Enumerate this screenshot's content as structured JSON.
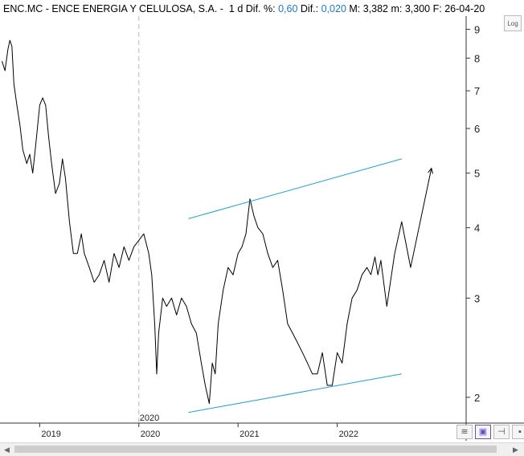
{
  "header": {
    "ticker": "ENC.MC",
    "sep1": " - ",
    "name": "ENCE ENERGIA Y CELULOSA, S.A.",
    "sep2": " - ",
    "period": "1 d",
    "dif_pct_label": "Dif. %:",
    "dif_pct_value": "0,60",
    "dif_label": "Dif.:",
    "dif_value": "0,020",
    "m_label": "M: 3,382",
    "m2_label": "m: 3,300",
    "f_label": "F: 26-04-20"
  },
  "controls": {
    "log_label": "Log"
  },
  "colors": {
    "price": "#000000",
    "channel": "#1ea0d8",
    "grid": "#b8b8b8",
    "axis": "#333333"
  },
  "chart_data": {
    "type": "line",
    "scale": "log",
    "ylim": [
      1.8,
      9.5
    ],
    "y_ticks": [
      2,
      3,
      4,
      5,
      6,
      7,
      8,
      9
    ],
    "x_ticks": [
      {
        "label": "2019",
        "x": 2019.0
      },
      {
        "label": "2020",
        "x": 2020.0
      },
      {
        "label": "2021",
        "x": 2021.0
      },
      {
        "label": "2022",
        "x": 2022.0
      }
    ],
    "x_range": [
      2018.6,
      2023.3
    ],
    "vertical_marker": {
      "label": "2020",
      "x": 2020.0
    },
    "series": [
      {
        "kind": "price",
        "points": [
          [
            2018.62,
            7.9
          ],
          [
            2018.65,
            7.6
          ],
          [
            2018.68,
            8.3
          ],
          [
            2018.7,
            8.6
          ],
          [
            2018.72,
            8.4
          ],
          [
            2018.74,
            7.2
          ],
          [
            2018.77,
            6.6
          ],
          [
            2018.8,
            6.1
          ],
          [
            2018.83,
            5.5
          ],
          [
            2018.87,
            5.2
          ],
          [
            2018.9,
            5.4
          ],
          [
            2018.93,
            5.0
          ],
          [
            2018.96,
            5.6
          ],
          [
            2019.0,
            6.6
          ],
          [
            2019.03,
            6.8
          ],
          [
            2019.06,
            6.6
          ],
          [
            2019.09,
            5.8
          ],
          [
            2019.12,
            5.2
          ],
          [
            2019.16,
            4.6
          ],
          [
            2019.2,
            4.8
          ],
          [
            2019.23,
            5.3
          ],
          [
            2019.26,
            4.9
          ],
          [
            2019.3,
            4.1
          ],
          [
            2019.34,
            3.6
          ],
          [
            2019.38,
            3.6
          ],
          [
            2019.42,
            3.9
          ],
          [
            2019.45,
            3.6
          ],
          [
            2019.5,
            3.4
          ],
          [
            2019.55,
            3.2
          ],
          [
            2019.6,
            3.3
          ],
          [
            2019.65,
            3.5
          ],
          [
            2019.7,
            3.2
          ],
          [
            2019.75,
            3.6
          ],
          [
            2019.8,
            3.4
          ],
          [
            2019.85,
            3.7
          ],
          [
            2019.9,
            3.5
          ],
          [
            2019.95,
            3.7
          ],
          [
            2020.0,
            3.8
          ],
          [
            2020.05,
            3.9
          ],
          [
            2020.1,
            3.6
          ],
          [
            2020.13,
            3.3
          ],
          [
            2020.16,
            2.7
          ],
          [
            2020.18,
            2.2
          ],
          [
            2020.2,
            2.6
          ],
          [
            2020.24,
            3.0
          ],
          [
            2020.28,
            2.9
          ],
          [
            2020.33,
            3.0
          ],
          [
            2020.38,
            2.8
          ],
          [
            2020.43,
            3.0
          ],
          [
            2020.48,
            2.9
          ],
          [
            2020.53,
            2.7
          ],
          [
            2020.58,
            2.6
          ],
          [
            2020.63,
            2.3
          ],
          [
            2020.67,
            2.1
          ],
          [
            2020.71,
            1.95
          ],
          [
            2020.74,
            2.3
          ],
          [
            2020.77,
            2.2
          ],
          [
            2020.8,
            2.7
          ],
          [
            2020.85,
            3.1
          ],
          [
            2020.9,
            3.4
          ],
          [
            2020.95,
            3.3
          ],
          [
            2021.0,
            3.6
          ],
          [
            2021.04,
            3.7
          ],
          [
            2021.08,
            3.9
          ],
          [
            2021.12,
            4.5
          ],
          [
            2021.16,
            4.2
          ],
          [
            2021.2,
            4.0
          ],
          [
            2021.25,
            3.9
          ],
          [
            2021.3,
            3.6
          ],
          [
            2021.35,
            3.4
          ],
          [
            2021.4,
            3.5
          ],
          [
            2021.45,
            3.1
          ],
          [
            2021.5,
            2.7
          ],
          [
            2021.55,
            2.6
          ],
          [
            2021.6,
            2.5
          ],
          [
            2021.65,
            2.4
          ],
          [
            2021.7,
            2.3
          ],
          [
            2021.75,
            2.2
          ],
          [
            2021.8,
            2.2
          ],
          [
            2021.85,
            2.4
          ],
          [
            2021.9,
            2.1
          ],
          [
            2021.95,
            2.1
          ],
          [
            2022.0,
            2.4
          ],
          [
            2022.05,
            2.3
          ],
          [
            2022.1,
            2.7
          ],
          [
            2022.15,
            3.0
          ],
          [
            2022.2,
            3.1
          ],
          [
            2022.25,
            3.3
          ],
          [
            2022.3,
            3.4
          ],
          [
            2022.34,
            3.3
          ]
        ]
      },
      {
        "kind": "projection",
        "points": [
          [
            2022.34,
            3.3
          ],
          [
            2022.38,
            3.55
          ],
          [
            2022.41,
            3.3
          ],
          [
            2022.44,
            3.5
          ],
          [
            2022.5,
            2.9
          ],
          [
            2022.58,
            3.6
          ],
          [
            2022.65,
            4.1
          ],
          [
            2022.74,
            3.4
          ],
          [
            2022.95,
            5.1
          ]
        ]
      },
      {
        "kind": "channel_upper",
        "points": [
          [
            2020.5,
            4.15
          ],
          [
            2022.65,
            5.3
          ]
        ]
      },
      {
        "kind": "channel_lower",
        "points": [
          [
            2020.5,
            1.88
          ],
          [
            2022.65,
            2.2
          ]
        ]
      }
    ]
  }
}
